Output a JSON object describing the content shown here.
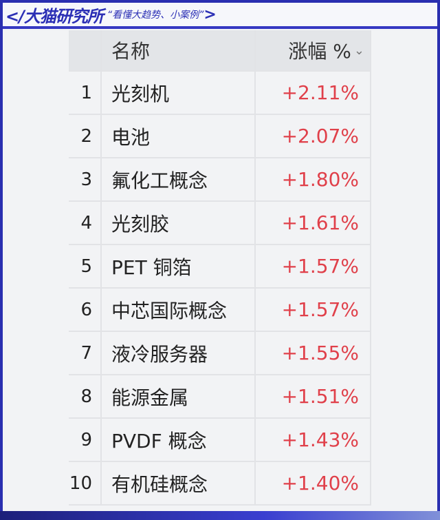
{
  "banner": {
    "brand": "</大猫研究所",
    "slogan": "“看懂大趋势、小案例”",
    "close": ">"
  },
  "table": {
    "header": {
      "name": "名称",
      "change": "涨幅 %",
      "sort_icon": "chevron-down-icon"
    },
    "rows": [
      {
        "rank": "1",
        "name": "光刻机",
        "change": "+2.11%"
      },
      {
        "rank": "2",
        "name": "电池",
        "change": "+2.07%"
      },
      {
        "rank": "3",
        "name": "氟化工概念",
        "change": "+1.80%"
      },
      {
        "rank": "4",
        "name": "光刻胶",
        "change": "+1.61%"
      },
      {
        "rank": "5",
        "name": "PET 铜箔",
        "change": "+1.57%"
      },
      {
        "rank": "6",
        "name": "中芯国际概念",
        "change": "+1.57%"
      },
      {
        "rank": "7",
        "name": "液冷服务器",
        "change": "+1.55%"
      },
      {
        "rank": "8",
        "name": "能源金属",
        "change": "+1.51%"
      },
      {
        "rank": "9",
        "name": "PVDF 概念",
        "change": "+1.43%"
      },
      {
        "rank": "10",
        "name": "有机硅概念",
        "change": "+1.40%"
      }
    ]
  },
  "colors": {
    "accent": "#2b2fb5",
    "positive": "#e0404a"
  }
}
